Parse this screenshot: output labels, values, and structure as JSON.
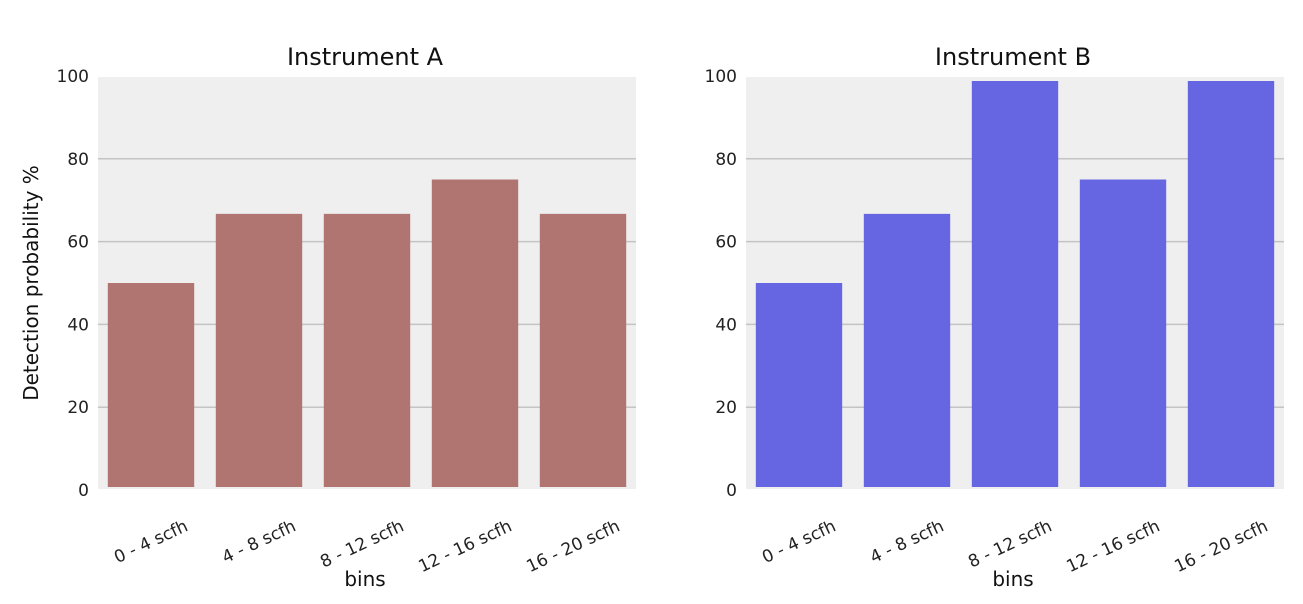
{
  "chart_data": [
    {
      "type": "bar",
      "title": "Instrument A",
      "xlabel": "bins",
      "ylabel": "Detection probability %",
      "categories": [
        "0 - 4 scfh",
        "4 - 8 scfh",
        "8 - 12 scfh",
        "12 - 16 scfh",
        "16 - 20 scfh"
      ],
      "values": [
        50,
        66.7,
        66.7,
        75,
        66.7
      ],
      "ylim": [
        0,
        100
      ],
      "yticks": [
        "0",
        "20",
        "40",
        "60",
        "80",
        "100"
      ],
      "grid": "horizontal",
      "bar_color": "#b07471"
    },
    {
      "type": "bar",
      "title": "Instrument B",
      "xlabel": "bins",
      "ylabel": "",
      "categories": [
        "0 - 4 scfh",
        "4 - 8 scfh",
        "8 - 12 scfh",
        "12 - 16 scfh",
        "16 - 20 scfh"
      ],
      "values": [
        50,
        66.7,
        100,
        75,
        100
      ],
      "ylim": [
        0,
        100
      ],
      "yticks": [
        "0",
        "20",
        "40",
        "60",
        "80",
        "100"
      ],
      "grid": "horizontal",
      "bar_color": "#6666e3"
    }
  ]
}
